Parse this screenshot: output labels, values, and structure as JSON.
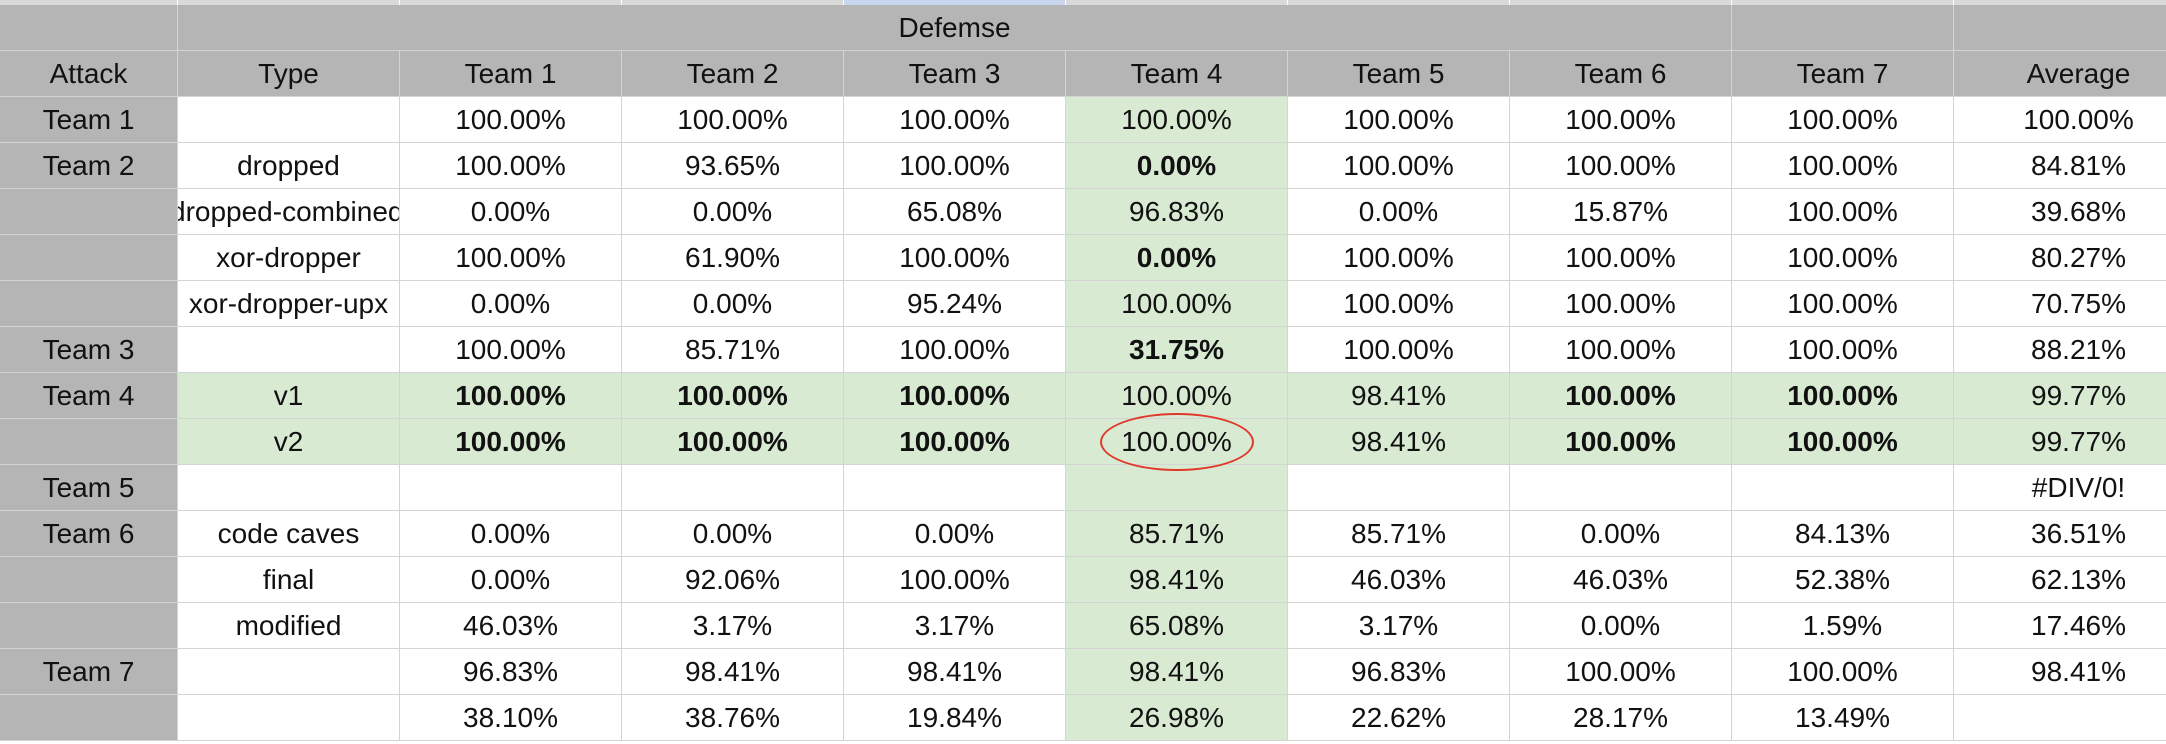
{
  "header": {
    "group_label": "Defemse",
    "attack_label": "Attack",
    "type_label": "Type",
    "columns": [
      "Team 1",
      "Team 2",
      "Team 3",
      "Team 4",
      "Team 5",
      "Team 6",
      "Team 7"
    ],
    "average_label": "Average"
  },
  "highlight_color": "#d9ead3",
  "header_color": "#b5b5b5",
  "annotation_color": "#e0392b",
  "rows": [
    {
      "attack": "Team 1",
      "type": "",
      "values": [
        "100.00%",
        "100.00%",
        "100.00%",
        "100.00%",
        "100.00%",
        "100.00%",
        "100.00%"
      ],
      "average": "100.00%",
      "bold": [
        false,
        false,
        false,
        false,
        false,
        false,
        false
      ],
      "green_row": false
    },
    {
      "attack": "Team 2",
      "type": "dropped",
      "values": [
        "100.00%",
        "93.65%",
        "100.00%",
        "0.00%",
        "100.00%",
        "100.00%",
        "100.00%"
      ],
      "average": "84.81%",
      "bold": [
        false,
        false,
        false,
        true,
        false,
        false,
        false
      ],
      "green_row": false
    },
    {
      "attack": "",
      "type": "dropped-combined",
      "values": [
        "0.00%",
        "0.00%",
        "65.08%",
        "96.83%",
        "0.00%",
        "15.87%",
        "100.00%"
      ],
      "average": "39.68%",
      "bold": [
        false,
        false,
        false,
        false,
        false,
        false,
        false
      ],
      "green_row": false
    },
    {
      "attack": "",
      "type": "xor-dropper",
      "values": [
        "100.00%",
        "61.90%",
        "100.00%",
        "0.00%",
        "100.00%",
        "100.00%",
        "100.00%"
      ],
      "average": "80.27%",
      "bold": [
        false,
        false,
        false,
        true,
        false,
        false,
        false
      ],
      "green_row": false
    },
    {
      "attack": "",
      "type": "xor-dropper-upx",
      "values": [
        "0.00%",
        "0.00%",
        "95.24%",
        "100.00%",
        "100.00%",
        "100.00%",
        "100.00%"
      ],
      "average": "70.75%",
      "bold": [
        false,
        false,
        false,
        false,
        false,
        false,
        false
      ],
      "green_row": false
    },
    {
      "attack": "Team 3",
      "type": "",
      "values": [
        "100.00%",
        "85.71%",
        "100.00%",
        "31.75%",
        "100.00%",
        "100.00%",
        "100.00%"
      ],
      "average": "88.21%",
      "bold": [
        false,
        false,
        false,
        true,
        false,
        false,
        false
      ],
      "green_row": false
    },
    {
      "attack": "Team 4",
      "type": "v1",
      "values": [
        "100.00%",
        "100.00%",
        "100.00%",
        "100.00%",
        "98.41%",
        "100.00%",
        "100.00%"
      ],
      "average": "99.77%",
      "bold": [
        true,
        true,
        true,
        false,
        false,
        true,
        true
      ],
      "green_row": true
    },
    {
      "attack": "",
      "type": "v2",
      "values": [
        "100.00%",
        "100.00%",
        "100.00%",
        "100.00%",
        "98.41%",
        "100.00%",
        "100.00%"
      ],
      "average": "99.77%",
      "bold": [
        true,
        true,
        true,
        false,
        false,
        true,
        true
      ],
      "green_row": true
    },
    {
      "attack": "Team 5",
      "type": "",
      "values": [
        "",
        "",
        "",
        "",
        "",
        "",
        ""
      ],
      "average": "#DIV/0!",
      "bold": [
        false,
        false,
        false,
        false,
        false,
        false,
        false
      ],
      "green_row": false
    },
    {
      "attack": "Team 6",
      "type": "code caves",
      "values": [
        "0.00%",
        "0.00%",
        "0.00%",
        "85.71%",
        "85.71%",
        "0.00%",
        "84.13%"
      ],
      "average": "36.51%",
      "bold": [
        false,
        false,
        false,
        false,
        false,
        false,
        false
      ],
      "green_row": false
    },
    {
      "attack": "",
      "type": "final",
      "values": [
        "0.00%",
        "92.06%",
        "100.00%",
        "98.41%",
        "46.03%",
        "46.03%",
        "52.38%"
      ],
      "average": "62.13%",
      "bold": [
        false,
        false,
        false,
        false,
        false,
        false,
        false
      ],
      "green_row": false
    },
    {
      "attack": "",
      "type": "modified",
      "values": [
        "46.03%",
        "3.17%",
        "3.17%",
        "65.08%",
        "3.17%",
        "0.00%",
        "1.59%"
      ],
      "average": "17.46%",
      "bold": [
        false,
        false,
        false,
        false,
        false,
        false,
        false
      ],
      "green_row": false
    },
    {
      "attack": "Team 7",
      "type": "",
      "values": [
        "96.83%",
        "98.41%",
        "98.41%",
        "98.41%",
        "96.83%",
        "100.00%",
        "100.00%"
      ],
      "average": "98.41%",
      "bold": [
        false,
        false,
        false,
        false,
        false,
        false,
        false
      ],
      "green_row": false
    },
    {
      "attack": "",
      "type": "",
      "values": [
        "38.10%",
        "38.76%",
        "19.84%",
        "26.98%",
        "22.62%",
        "28.17%",
        "13.49%"
      ],
      "average": "",
      "bold": [
        false,
        false,
        false,
        false,
        false,
        false,
        false
      ],
      "green_row": false
    }
  ]
}
